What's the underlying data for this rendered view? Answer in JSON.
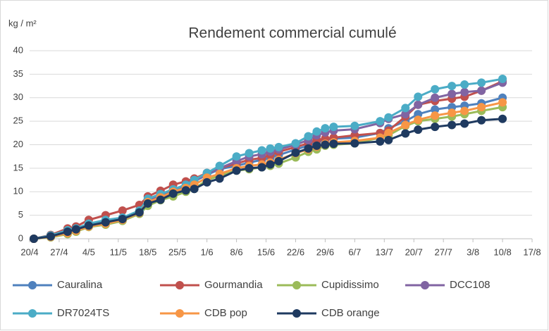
{
  "chart_data": {
    "type": "line",
    "title": "Rendement commercial cumulé",
    "ylabel": "kg / m²",
    "x": [
      "21/4",
      "25/4",
      "29/4",
      "1/5",
      "4/5",
      "8/5",
      "12/5",
      "16/5",
      "18/5",
      "21/5",
      "24/5",
      "27/5",
      "29/5",
      "1/6",
      "4/6",
      "8/6",
      "11/6",
      "14/6",
      "16/6",
      "18/6",
      "22/6",
      "25/6",
      "27/6",
      "29/6",
      "1/7",
      "6/7",
      "12/7",
      "14/7",
      "18/7",
      "21/7",
      "25/7",
      "29/7",
      "1/8",
      "5/8",
      "10/8"
    ],
    "xlim": [
      "20/4",
      "17/8"
    ],
    "xticks": [
      "20/4",
      "27/4",
      "4/5",
      "11/5",
      "18/5",
      "25/5",
      "1/6",
      "8/6",
      "15/6",
      "22/6",
      "29/6",
      "6/7",
      "13/7",
      "20/7",
      "27/7",
      "3/8",
      "10/8",
      "17/8"
    ],
    "ylim": [
      0,
      40
    ],
    "yticks": [
      0,
      5,
      10,
      15,
      20,
      25,
      30,
      35,
      40
    ],
    "grid": true,
    "series": [
      {
        "name": "Cauralina",
        "color": "#4f81bd",
        "values": [
          0,
          0.5,
          1.5,
          2,
          3,
          3.5,
          4.2,
          5.8,
          8.2,
          9.2,
          10.3,
          11.3,
          12.2,
          13.6,
          14.8,
          15.5,
          16.2,
          16.8,
          17.2,
          17.8,
          19,
          19.8,
          20.5,
          21,
          21.3,
          21.5,
          22.5,
          23.5,
          25,
          26.5,
          27.5,
          28,
          28.3,
          28.8,
          30
        ]
      },
      {
        "name": "Gourmandia",
        "color": "#c0504d",
        "values": [
          0,
          0.8,
          2.2,
          2.6,
          4,
          5,
          6,
          7.2,
          9,
          10.2,
          11.5,
          12.2,
          12.8,
          14,
          15,
          16,
          16.8,
          17.2,
          17.8,
          18.5,
          19.5,
          20.3,
          21,
          21.3,
          21.5,
          22,
          22.5,
          23,
          26,
          28.5,
          29.3,
          29.8,
          30.2,
          31.5,
          33.5
        ]
      },
      {
        "name": "Cupidissimo",
        "color": "#9bbb59",
        "values": [
          0,
          0.3,
          1,
          1.5,
          2.5,
          3,
          3.8,
          5.3,
          7,
          8.2,
          9,
          10,
          10.6,
          12.5,
          13.4,
          14.5,
          14.8,
          15.2,
          15.5,
          16,
          17.3,
          18.5,
          19,
          19.8,
          20,
          20.3,
          21.5,
          22,
          24,
          25,
          25.5,
          26,
          26.5,
          27.2,
          28
        ]
      },
      {
        "name": "DCC108",
        "color": "#8064a2",
        "values": [
          0,
          0.6,
          1.7,
          2.1,
          3,
          3.8,
          4.3,
          5.8,
          8.2,
          9.3,
          10.4,
          11.3,
          12.2,
          13.8,
          15,
          16.5,
          17.5,
          18,
          18.5,
          19,
          20,
          21,
          22,
          22.6,
          23,
          23.3,
          24.6,
          25.5,
          26.5,
          28.5,
          30,
          30.8,
          31.2,
          31.5,
          33.2
        ]
      },
      {
        "name": "DR7024TS",
        "color": "#4bacc6",
        "values": [
          0,
          0.7,
          1.8,
          2.2,
          3.2,
          4,
          4.5,
          6,
          8.5,
          9.5,
          10.5,
          11.5,
          12.5,
          14,
          15.5,
          17.5,
          18.2,
          18.8,
          19.2,
          19.5,
          20.3,
          21.8,
          22.8,
          23.5,
          23.8,
          24,
          25,
          25.8,
          27.8,
          30.2,
          31.8,
          32.5,
          32.8,
          33.2,
          34
        ]
      },
      {
        "name": "CDB pop",
        "color": "#f79646",
        "values": [
          0,
          0.4,
          1.2,
          1.7,
          2.6,
          3.2,
          4,
          5.5,
          7.8,
          8.8,
          10,
          10.8,
          11.5,
          13,
          13.8,
          15,
          15.5,
          15.8,
          16.2,
          16.8,
          18.2,
          19,
          19.6,
          20.2,
          20.5,
          20.8,
          21.5,
          22.5,
          24.2,
          25.3,
          26.2,
          26.8,
          27.2,
          28,
          29
        ]
      },
      {
        "name": "CDB orange",
        "color": "#1f3a60",
        "values": [
          0,
          0.5,
          1.5,
          2,
          2.8,
          3.5,
          4.2,
          5.6,
          7.5,
          8.3,
          9.6,
          10.3,
          10.6,
          12,
          12.8,
          14.5,
          15,
          15.2,
          15.8,
          16.5,
          18.3,
          19.2,
          19.8,
          20,
          20.2,
          20.3,
          20.7,
          21,
          22.4,
          23.2,
          23.8,
          24.2,
          24.5,
          25.2,
          25.5
        ]
      }
    ]
  }
}
